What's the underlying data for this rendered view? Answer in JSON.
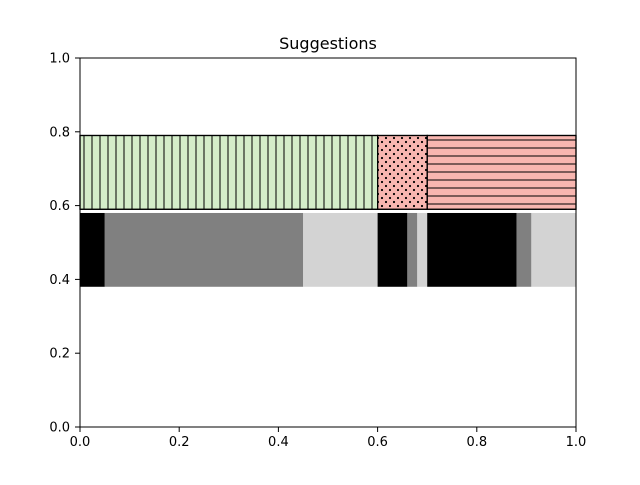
{
  "chart_data": {
    "type": "bar",
    "title": "Suggestions",
    "xlabel": "",
    "ylabel": "",
    "xlim": [
      0,
      1
    ],
    "ylim": [
      0,
      1
    ],
    "xticks": [
      "0.0",
      "0.2",
      "0.4",
      "0.6",
      "0.8",
      "1.0"
    ],
    "yticks": [
      "0.0",
      "0.2",
      "0.4",
      "0.6",
      "0.8",
      "1.0"
    ],
    "grid": false,
    "orientation": "horizontal-stacked",
    "series": [
      {
        "y": 0.69,
        "height": 0.2,
        "segments": [
          {
            "start": 0.0,
            "width": 0.6,
            "color": "#d4edc9",
            "hatch": "vertical-lines"
          },
          {
            "start": 0.6,
            "width": 0.1,
            "color": "#f8b6b0",
            "hatch": "dots"
          },
          {
            "start": 0.7,
            "width": 0.3,
            "color": "#f8b6b0",
            "hatch": "horizontal-lines"
          }
        ]
      },
      {
        "y": 0.48,
        "height": 0.2,
        "segments": [
          {
            "start": 0.0,
            "width": 0.05,
            "color": "#000000"
          },
          {
            "start": 0.05,
            "width": 0.4,
            "color": "#808080"
          },
          {
            "start": 0.45,
            "width": 0.15,
            "color": "#d3d3d3"
          },
          {
            "start": 0.6,
            "width": 0.06,
            "color": "#000000"
          },
          {
            "start": 0.66,
            "width": 0.02,
            "color": "#808080"
          },
          {
            "start": 0.68,
            "width": 0.02,
            "color": "#d3d3d3"
          },
          {
            "start": 0.7,
            "width": 0.18,
            "color": "#000000"
          },
          {
            "start": 0.88,
            "width": 0.03,
            "color": "#808080"
          },
          {
            "start": 0.91,
            "width": 0.09,
            "color": "#d3d3d3"
          }
        ]
      }
    ]
  }
}
